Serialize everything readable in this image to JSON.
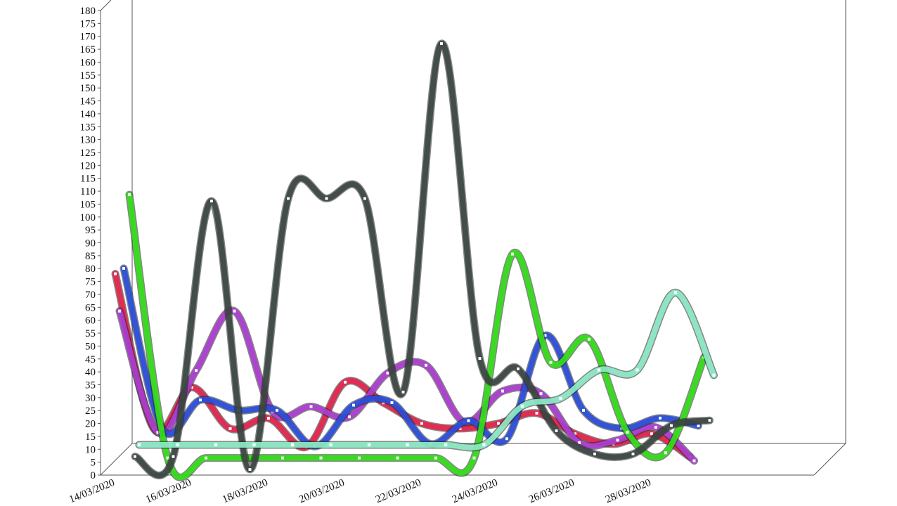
{
  "chart_data": {
    "type": "line",
    "style": "3d-ribbon",
    "ylim": [
      0,
      180
    ],
    "ytick_step": 5,
    "x_tick_labels": [
      "14/03/2020",
      "16/03/2020",
      "18/03/2020",
      "20/03/2020",
      "22/03/2020",
      "24/03/2020",
      "26/03/2020",
      "28/03/2020"
    ],
    "x_dates": [
      "14/03",
      "15/03",
      "16/03",
      "17/03",
      "18/03",
      "19/03",
      "20/03",
      "21/03",
      "22/03",
      "23/03",
      "24/03",
      "25/03",
      "26/03",
      "27/03",
      "28/03",
      "29/03"
    ],
    "grid": false,
    "legend": "none",
    "series": [
      {
        "color": "#e8254e",
        "values": [
          78,
          18,
          34,
          18,
          22,
          11,
          36,
          28,
          20,
          18,
          20,
          24,
          16,
          12,
          16,
          7
        ]
      },
      {
        "color": "#b03ed6",
        "values": [
          63,
          16,
          40,
          63,
          24,
          26,
          22,
          39,
          42,
          20,
          32,
          31,
          12,
          13,
          18,
          5
        ]
      },
      {
        "color": "#2a4fe0",
        "values": [
          79,
          17,
          28,
          24,
          24,
          10,
          26,
          27,
          11,
          20,
          13,
          53,
          24,
          17,
          21,
          18
        ]
      },
      {
        "color": "#34e21a",
        "values": [
          107,
          5,
          5,
          5,
          5,
          5,
          5,
          5,
          5,
          5,
          84,
          42,
          51,
          15,
          7,
          44
        ]
      },
      {
        "color": "#3c4743",
        "values": [
          5,
          5,
          104,
          0,
          105,
          105,
          105,
          30,
          165,
          43,
          39,
          15,
          6,
          6,
          17,
          19
        ]
      },
      {
        "color": "#8fefcb",
        "values": [
          9,
          9,
          9,
          9,
          9,
          9,
          9,
          9,
          9,
          9,
          24,
          27,
          38,
          38,
          68,
          36
        ]
      }
    ]
  }
}
